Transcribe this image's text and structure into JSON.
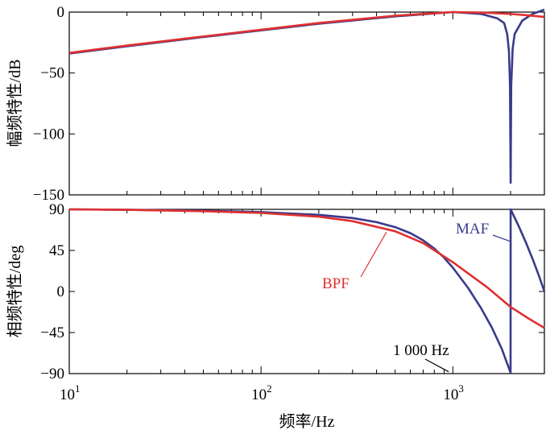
{
  "chart_data": [
    {
      "type": "line",
      "ylabel": "幅频特性/dB",
      "xscale": "log",
      "xlim": [
        10,
        3000
      ],
      "ylim": [
        -150,
        0
      ],
      "yticks": [
        0,
        -50,
        -100,
        -150
      ],
      "ytick_labels": [
        "0",
        "−50",
        "−100",
        "−150"
      ],
      "grid": false,
      "series": [
        {
          "name": "MAF",
          "color": "#3a3a8c",
          "x": [
            10,
            20,
            50,
            100,
            200,
            500,
            1000,
            1400,
            1700,
            1850,
            1920,
            1960,
            1985,
            2000,
            2015,
            2050,
            2100,
            2300,
            2600,
            3000
          ],
          "y": [
            -34,
            -28,
            -20.5,
            -15,
            -9.5,
            -3.5,
            0,
            -1.5,
            -5,
            -9,
            -18,
            -32,
            -60,
            -140,
            -60,
            -30,
            -18,
            -7,
            -1.5,
            2
          ]
        },
        {
          "name": "BPF",
          "color": "#e03030",
          "x": [
            10,
            20,
            50,
            100,
            200,
            500,
            1000,
            1500,
            2000,
            2500,
            3000
          ],
          "y": [
            -33.5,
            -27.5,
            -20,
            -14.5,
            -9,
            -3,
            0,
            -0.5,
            -1.5,
            -2.8,
            -4
          ]
        }
      ]
    },
    {
      "type": "line",
      "xlabel": "频率/Hz",
      "ylabel": "相频特性/deg",
      "xscale": "log",
      "xlim": [
        10,
        3000
      ],
      "ylim": [
        -90,
        90
      ],
      "yticks": [
        90,
        45,
        0,
        -45,
        -90
      ],
      "ytick_labels": [
        "90",
        "45",
        "0",
        "−45",
        "−90"
      ],
      "xticks": [
        10,
        100,
        1000
      ],
      "xtick_labels": [
        {
          "base": "10",
          "exp": "1"
        },
        {
          "base": "10",
          "exp": "2"
        },
        {
          "base": "10",
          "exp": "3"
        }
      ],
      "grid": false,
      "series": [
        {
          "name": "MAF",
          "color": "#3a3a8c",
          "x": [
            10,
            20,
            50,
            100,
            200,
            300,
            400,
            500,
            600,
            700,
            800,
            900,
            1000,
            1200,
            1400,
            1600,
            1800,
            1999,
            2000,
            2200,
            2400,
            2600,
            2800,
            3000
          ],
          "y": [
            90,
            89.5,
            88.5,
            87,
            84,
            80.5,
            76,
            70.5,
            64,
            56,
            47,
            37,
            26,
            4,
            -18,
            -40,
            -63,
            -89,
            90,
            72,
            54,
            36,
            18,
            0
          ]
        },
        {
          "name": "BPF",
          "color": "#e03030",
          "x": [
            10,
            20,
            50,
            100,
            200,
            300,
            500,
            700,
            1000,
            1500,
            2000,
            2500,
            3000
          ],
          "y": [
            90,
            89.5,
            88,
            86,
            82,
            77,
            66,
            53,
            32,
            5,
            -17,
            -30,
            -40
          ]
        }
      ],
      "annotations": [
        {
          "text": "MAF",
          "color": "#3a3a8c",
          "target": {
            "x": 1990,
            "y": 55
          }
        },
        {
          "text": "BPF",
          "color": "#e03030",
          "target": {
            "x": 450,
            "y": 65
          }
        },
        {
          "text": "1 000 Hz",
          "color": "#000000",
          "target": {
            "x": 950,
            "y": -88
          }
        }
      ]
    }
  ]
}
